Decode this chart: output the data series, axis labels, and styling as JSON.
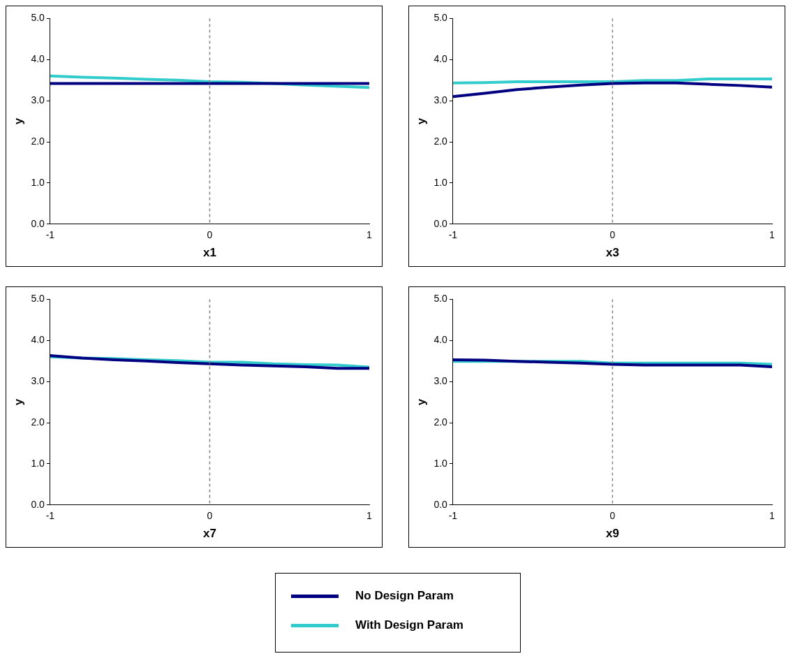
{
  "chart_data": [
    {
      "type": "line",
      "xlabel": "x1",
      "ylabel": "y",
      "xlim": [
        -1,
        1
      ],
      "xticks": [
        -1,
        0,
        1
      ],
      "ylim": [
        0,
        5
      ],
      "yticks": [
        {
          "value": 0,
          "label": "0.0"
        },
        {
          "value": 1,
          "label": "1.0"
        },
        {
          "value": 2,
          "label": "2.0"
        },
        {
          "value": 3,
          "label": "3.0"
        },
        {
          "value": 4,
          "label": "4.0"
        },
        {
          "value": 5,
          "label": "5.0"
        }
      ],
      "grid": false,
      "x": [
        -1,
        -0.8,
        -0.6,
        -0.4,
        -0.2,
        0,
        0.2,
        0.4,
        0.6,
        0.8,
        1
      ],
      "ref_lines": [
        {
          "axis": "x",
          "value": 0,
          "color": "#808080",
          "line_style": "dashed"
        }
      ],
      "series": [
        {
          "color": "#000080",
          "values": [
            3.42,
            3.42,
            3.42,
            3.42,
            3.42,
            3.42,
            3.42,
            3.42,
            3.42,
            3.42,
            3.42
          ]
        },
        {
          "color": "#33cccc",
          "values": [
            3.6,
            3.57,
            3.55,
            3.52,
            3.5,
            3.46,
            3.45,
            3.42,
            3.38,
            3.35,
            3.32
          ]
        }
      ]
    },
    {
      "type": "line",
      "xlabel": "x3",
      "ylabel": "y",
      "xlim": [
        -1,
        1
      ],
      "xticks": [
        -1,
        0,
        1
      ],
      "ylim": [
        0,
        5
      ],
      "yticks": [
        {
          "value": 0,
          "label": "0.0"
        },
        {
          "value": 1,
          "label": "1.0"
        },
        {
          "value": 2,
          "label": "2.0"
        },
        {
          "value": 3,
          "label": "3.0"
        },
        {
          "value": 4,
          "label": "4.0"
        },
        {
          "value": 5,
          "label": "5.0"
        }
      ],
      "grid": false,
      "x": [
        -1,
        -0.8,
        -0.6,
        -0.4,
        -0.2,
        0,
        0.2,
        0.4,
        0.6,
        0.8,
        1
      ],
      "ref_lines": [
        {
          "axis": "x",
          "value": 0,
          "color": "#808080",
          "line_style": "dashed"
        }
      ],
      "series": [
        {
          "color": "#000080",
          "values": [
            3.1,
            3.18,
            3.27,
            3.33,
            3.38,
            3.42,
            3.43,
            3.43,
            3.4,
            3.37,
            3.33
          ]
        },
        {
          "color": "#33cccc",
          "values": [
            3.43,
            3.44,
            3.46,
            3.46,
            3.46,
            3.46,
            3.49,
            3.49,
            3.53,
            3.53,
            3.53
          ]
        }
      ]
    },
    {
      "type": "line",
      "xlabel": "x7",
      "ylabel": "y",
      "xlim": [
        -1,
        1
      ],
      "xticks": [
        -1,
        0,
        1
      ],
      "ylim": [
        0,
        5
      ],
      "yticks": [
        {
          "value": 0,
          "label": "0.0"
        },
        {
          "value": 1,
          "label": "1.0"
        },
        {
          "value": 2,
          "label": "2.0"
        },
        {
          "value": 3,
          "label": "3.0"
        },
        {
          "value": 4,
          "label": "4.0"
        },
        {
          "value": 5,
          "label": "5.0"
        }
      ],
      "grid": false,
      "x": [
        -1,
        -0.8,
        -0.6,
        -0.4,
        -0.2,
        0,
        0.2,
        0.4,
        0.6,
        0.8,
        1
      ],
      "ref_lines": [
        {
          "axis": "x",
          "value": 0,
          "color": "#808080",
          "line_style": "dashed"
        }
      ],
      "series": [
        {
          "color": "#000080",
          "values": [
            3.63,
            3.57,
            3.53,
            3.5,
            3.46,
            3.43,
            3.4,
            3.38,
            3.36,
            3.32,
            3.32
          ]
        },
        {
          "color": "#33cccc",
          "values": [
            3.6,
            3.57,
            3.56,
            3.53,
            3.51,
            3.47,
            3.47,
            3.43,
            3.41,
            3.4,
            3.35
          ]
        }
      ]
    },
    {
      "type": "line",
      "xlabel": "x9",
      "ylabel": "y",
      "xlim": [
        -1,
        1
      ],
      "xticks": [
        -1,
        0,
        1
      ],
      "ylim": [
        0,
        5
      ],
      "yticks": [
        {
          "value": 0,
          "label": "0.0"
        },
        {
          "value": 1,
          "label": "1.0"
        },
        {
          "value": 2,
          "label": "2.0"
        },
        {
          "value": 3,
          "label": "3.0"
        },
        {
          "value": 4,
          "label": "4.0"
        },
        {
          "value": 5,
          "label": "5.0"
        }
      ],
      "grid": false,
      "legend": "bottom",
      "x": [
        -1,
        -0.8,
        -0.6,
        -0.4,
        -0.2,
        0,
        0.2,
        0.4,
        0.6,
        0.8,
        1
      ],
      "ref_lines": [
        {
          "axis": "x",
          "value": 0,
          "color": "#808080",
          "line_style": "dashed"
        }
      ],
      "series": [
        {
          "name": "No Design Param",
          "color": "#000080",
          "values": [
            3.53,
            3.52,
            3.49,
            3.47,
            3.45,
            3.42,
            3.4,
            3.4,
            3.4,
            3.4,
            3.36
          ]
        },
        {
          "name": "With Design Param",
          "color": "#33cccc",
          "values": [
            3.49,
            3.49,
            3.49,
            3.49,
            3.49,
            3.45,
            3.45,
            3.45,
            3.45,
            3.45,
            3.42
          ]
        }
      ]
    }
  ]
}
